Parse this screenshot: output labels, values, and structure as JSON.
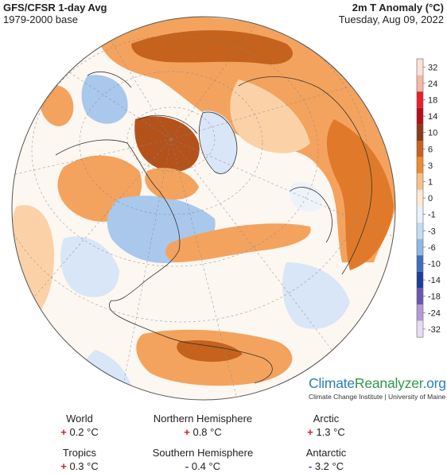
{
  "header": {
    "left_title": "GFS/CFSR 1-day Avg",
    "left_subtitle": "1979-2000 base",
    "right_title": "2m T Anomaly (°C)",
    "right_date": "Tuesday, Aug 09, 2022"
  },
  "legend": {
    "ticks": [
      "32",
      "24",
      "18",
      "14",
      "10",
      "6",
      "3",
      "1",
      "0",
      "-1",
      "-3",
      "-6",
      "-10",
      "-14",
      "-18",
      "-24",
      "-32"
    ],
    "colors": [
      "#fbe1d8",
      "#f5b7a6",
      "#e8202a",
      "#b40f1a",
      "#8b3a1b",
      "#c8621a",
      "#f08a2c",
      "#f9c086",
      "#fde9d4",
      "#eaf1fb",
      "#c5dbf2",
      "#8fb8e4",
      "#3f6ec0",
      "#1e3c9a",
      "#6b57b2",
      "#b39ad6",
      "#e7dcf0"
    ]
  },
  "brand": {
    "part1": "Climate",
    "part2": "Reanalyzer",
    "part3": ".org",
    "subtitle": "Climate Change Institute | University of Maine"
  },
  "stats": [
    {
      "label": "World",
      "sign": "+",
      "value": "0.2 °C"
    },
    {
      "label": "Northern Hemisphere",
      "sign": "+",
      "value": "0.8 °C"
    },
    {
      "label": "Arctic",
      "sign": "+",
      "value": "1.3 °C"
    },
    {
      "label": "Tropics",
      "sign": "+",
      "value": "0.3 °C"
    },
    {
      "label": "Southern Hemisphere",
      "sign": "-",
      "value": "0.4 °C"
    },
    {
      "label": "Antarctic",
      "sign": "-",
      "value": "3.2 °C"
    }
  ],
  "map_colors": {
    "warm_light": "#fbd2a8",
    "warm": "#f3a35e",
    "warm_strong": "#e07a2a",
    "hot": "#b4521b",
    "cool_light": "#d8e6f7",
    "cool": "#a9c8ec",
    "cool_strong": "#7fa7dd",
    "neutral": "#fdf7f1"
  }
}
